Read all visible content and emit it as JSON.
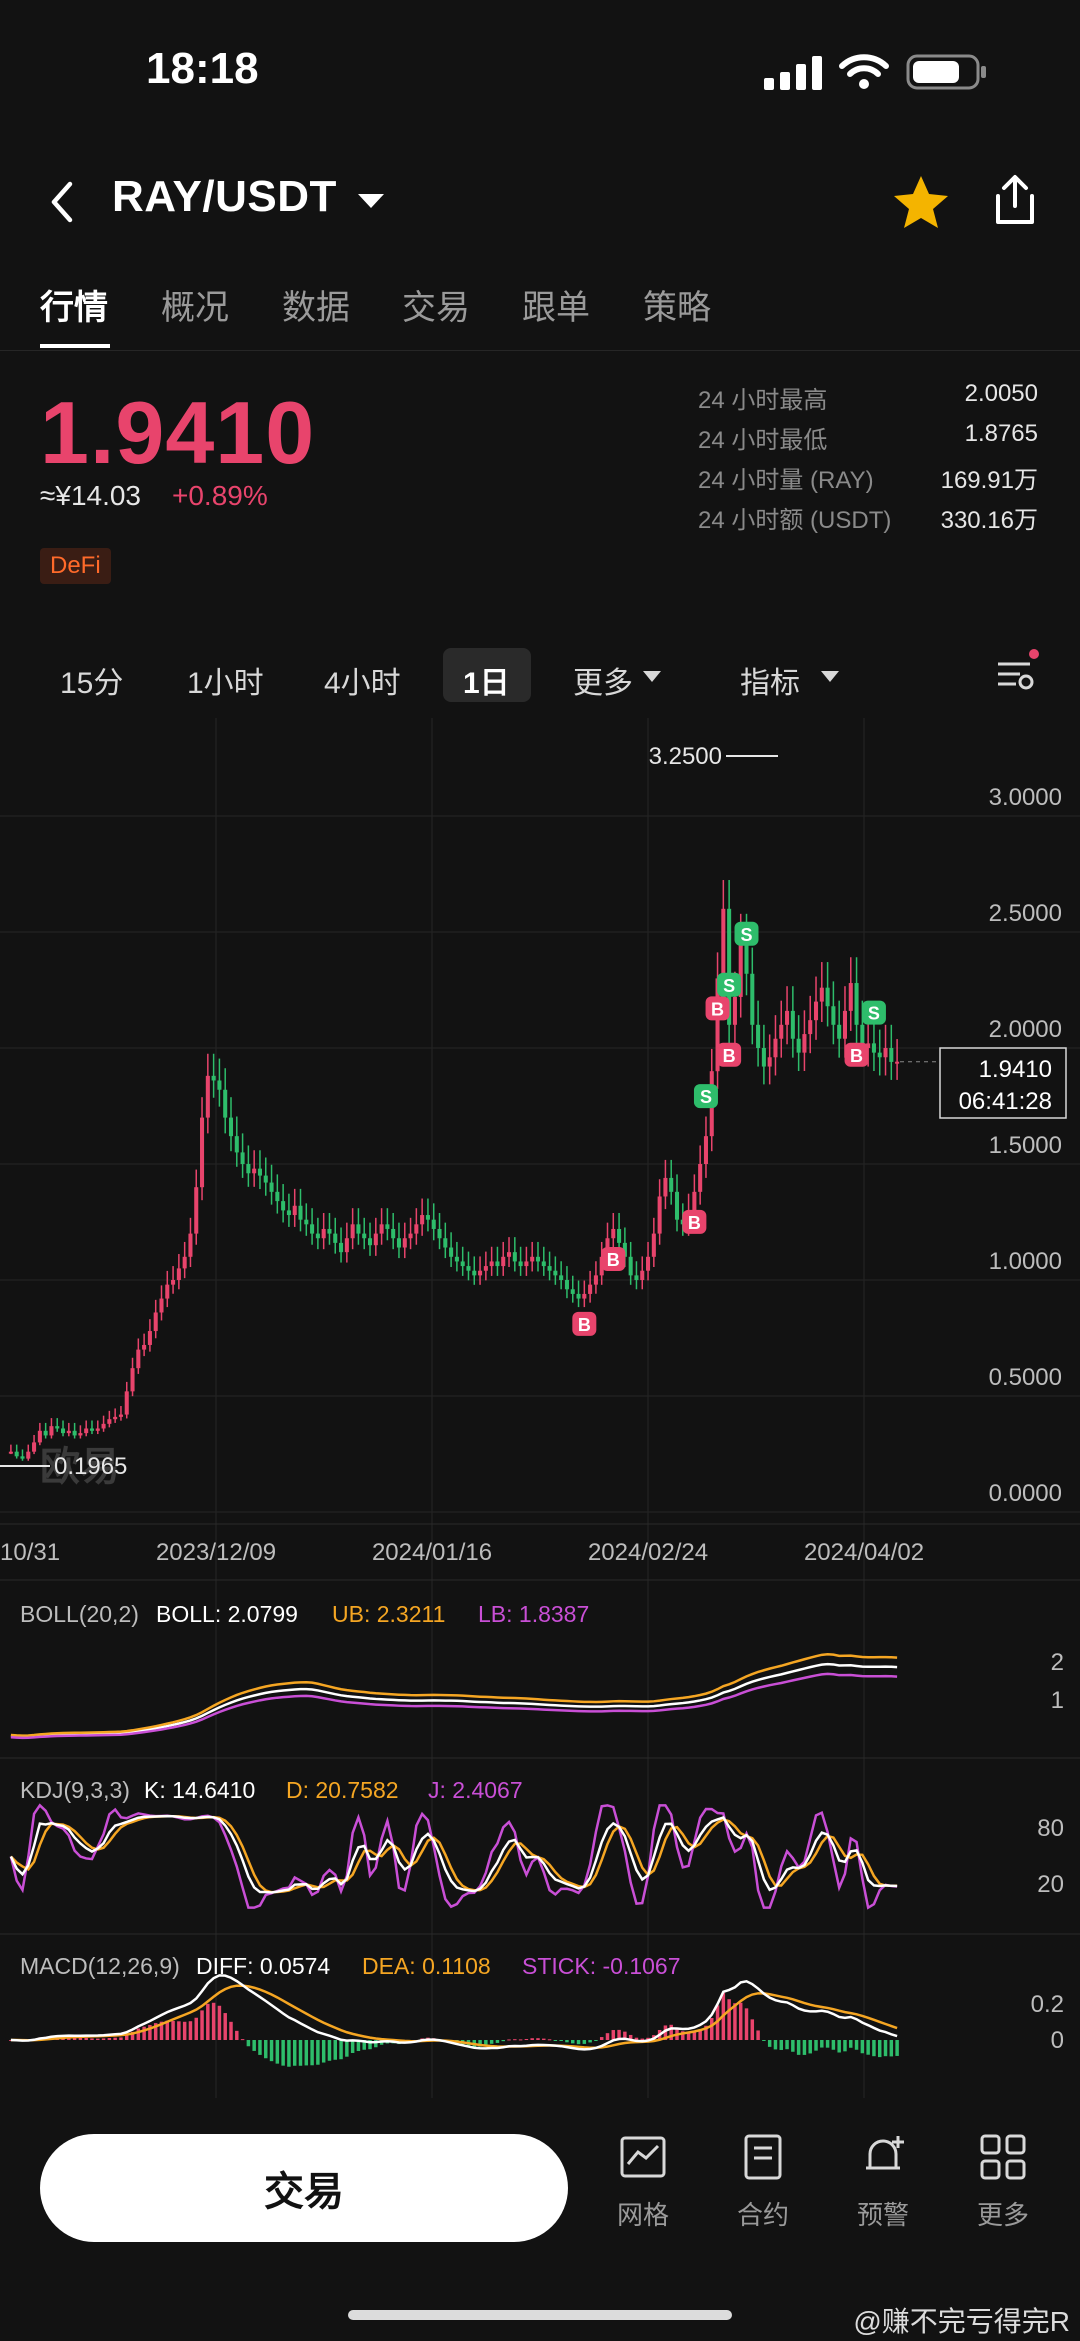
{
  "status_bar": {
    "time": "18:18"
  },
  "header": {
    "pair": "RAY/USDT"
  },
  "tabs": [
    "行情",
    "概况",
    "数据",
    "交易",
    "跟单",
    "策略"
  ],
  "price": {
    "last": "1.9410",
    "cny": "≈¥14.03",
    "change": "+0.89%",
    "tag": "DeFi"
  },
  "stats": [
    {
      "label": "24 小时最高",
      "value": "2.0050"
    },
    {
      "label": "24 小时最低",
      "value": "1.8765"
    },
    {
      "label": "24 小时量 (RAY)",
      "value": "169.91万"
    },
    {
      "label": "24 小时额 (USDT)",
      "value": "330.16万"
    }
  ],
  "intervals": [
    "15分",
    "1小时",
    "4小时",
    "1日",
    "更多",
    "指标"
  ],
  "active_interval": "1日",
  "chart_data": {
    "type": "candlestick",
    "y_ticks": [
      "3.0000",
      "2.5000",
      "2.0000",
      "1.5000",
      "1.0000",
      "0.5000",
      "0.0000"
    ],
    "x_ticks": [
      "10/31",
      "2023/12/09",
      "2024/01/16",
      "2024/02/24",
      "2024/04/02"
    ],
    "high_label": "3.2500",
    "low_label": "0.1965",
    "current_price": "1.9410",
    "countdown": "06:41:28",
    "series": [
      {
        "name": "close",
        "values": [
          0.26,
          0.24,
          0.23,
          0.26,
          0.3,
          0.35,
          0.33,
          0.37,
          0.36,
          0.34,
          0.35,
          0.33,
          0.34,
          0.36,
          0.35,
          0.36,
          0.38,
          0.4,
          0.41,
          0.42,
          0.52,
          0.62,
          0.7,
          0.72,
          0.78,
          0.86,
          0.92,
          0.98,
          1.0,
          1.05,
          1.1,
          1.2,
          1.4,
          1.7,
          1.88,
          1.86,
          1.82,
          1.7,
          1.62,
          1.55,
          1.5,
          1.46,
          1.48,
          1.45,
          1.42,
          1.38,
          1.34,
          1.3,
          1.28,
          1.32,
          1.26,
          1.24,
          1.2,
          1.18,
          1.22,
          1.2,
          1.16,
          1.12,
          1.18,
          1.24,
          1.2,
          1.18,
          1.15,
          1.2,
          1.24,
          1.22,
          1.18,
          1.14,
          1.18,
          1.2,
          1.24,
          1.28,
          1.26,
          1.22,
          1.18,
          1.14,
          1.1,
          1.08,
          1.06,
          1.04,
          1.02,
          1.04,
          1.06,
          1.08,
          1.06,
          1.1,
          1.12,
          1.08,
          1.06,
          1.08,
          1.1,
          1.08,
          1.06,
          1.04,
          1.02,
          1.0,
          0.96,
          0.94,
          0.92,
          0.94,
          0.98,
          1.02,
          1.1,
          1.18,
          1.22,
          1.16,
          1.1,
          1.02,
          1.0,
          1.04,
          1.1,
          1.2,
          1.36,
          1.44,
          1.38,
          1.26,
          1.24,
          1.3,
          1.38,
          1.5,
          1.62,
          1.9,
          2.3,
          2.6,
          2.1,
          2.22,
          2.46,
          2.32,
          2.1,
          2.0,
          1.92,
          1.96,
          2.04,
          2.1,
          2.16,
          2.04,
          1.98,
          2.06,
          2.12,
          2.2,
          2.26,
          2.18,
          2.1,
          2.04,
          2.16,
          2.28,
          2.1,
          2.0,
          2.02,
          1.98,
          1.96,
          2.0,
          1.94,
          1.941
        ]
      }
    ],
    "buy_markers": [
      6,
      7,
      8,
      9,
      10,
      11
    ],
    "sell_markers": [
      1,
      2,
      3,
      4
    ],
    "indicators": {
      "boll": {
        "label": "BOLL(20,2)",
        "boll": "BOLL: 2.0799",
        "ub": "UB: 2.3211",
        "lb": "LB: 1.8387",
        "ticks": [
          "2",
          "1"
        ]
      },
      "kdj": {
        "label": "KDJ(9,3,3)",
        "k": "K: 14.6410",
        "d": "D: 20.7582",
        "j": "J: 2.4067",
        "ticks": [
          "80",
          "20"
        ]
      },
      "macd": {
        "label": "MACD(12,26,9)",
        "diff": "DIFF: 0.0574",
        "dea": "DEA: 0.1108",
        "stick": "STICK: -0.1067",
        "ticks": [
          "0.2",
          "0"
        ]
      }
    },
    "watermark": "欧易",
    "colors": {
      "up": "#e8446c",
      "down": "#2ebd6b",
      "boll_mid": "#ffffff",
      "boll_ub": "#f5a623",
      "boll_lb": "#c94fd6"
    }
  },
  "bottom_bar": {
    "trade": "交易",
    "items": [
      "网格",
      "合约",
      "预警",
      "更多"
    ]
  },
  "footer": {
    "user": "@赚不完亏得完R"
  }
}
